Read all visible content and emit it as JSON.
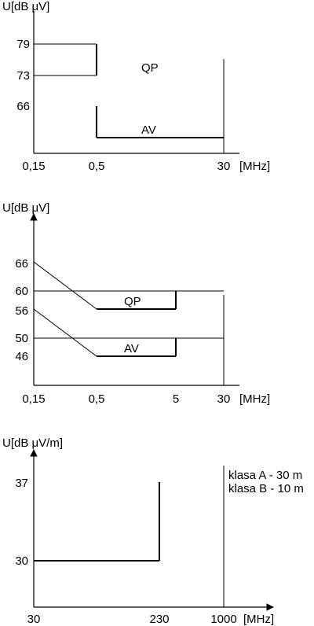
{
  "chart_data": [
    {
      "type": "line",
      "ylabel": "U[dB μV]",
      "xunit": "[MHz]",
      "x_tick_labels": [
        "0,15",
        "0,5",
        "30"
      ],
      "y_tick_labels": [
        "79",
        "73",
        "66"
      ],
      "series": [
        {
          "name": "QP",
          "x": [
            0.15,
            0.5,
            0.5
          ],
          "y": [
            79,
            79,
            73
          ]
        },
        {
          "name": "AV",
          "x": [
            0.5,
            0.5,
            30
          ],
          "y": [
            66,
            60,
            60
          ]
        }
      ]
    },
    {
      "type": "line",
      "ylabel": "U[dB μV]",
      "xunit": "[MHz]",
      "x_tick_labels": [
        "0,15",
        "0,5",
        "5",
        "30"
      ],
      "y_tick_labels": [
        "66",
        "60",
        "56",
        "50",
        "46"
      ],
      "series": [
        {
          "name": "QP",
          "x": [
            0.15,
            0.5,
            5,
            30
          ],
          "y": [
            66,
            56,
            56,
            60
          ]
        },
        {
          "name": "AV",
          "x": [
            0.15,
            0.5,
            5,
            30
          ],
          "y": [
            56,
            46,
            46,
            50
          ]
        }
      ]
    },
    {
      "type": "line",
      "ylabel": "U[dB μV/m]",
      "xunit": "[MHz]",
      "x_tick_labels": [
        "30",
        "230",
        "1000"
      ],
      "y_tick_labels": [
        "37",
        "30"
      ],
      "annotations": [
        "klasa A - 30 m",
        "klasa B - 10 m"
      ],
      "series": [
        {
          "x": [
            30,
            230,
            230,
            1000
          ],
          "y": [
            30,
            30,
            37,
            37
          ]
        }
      ]
    }
  ]
}
